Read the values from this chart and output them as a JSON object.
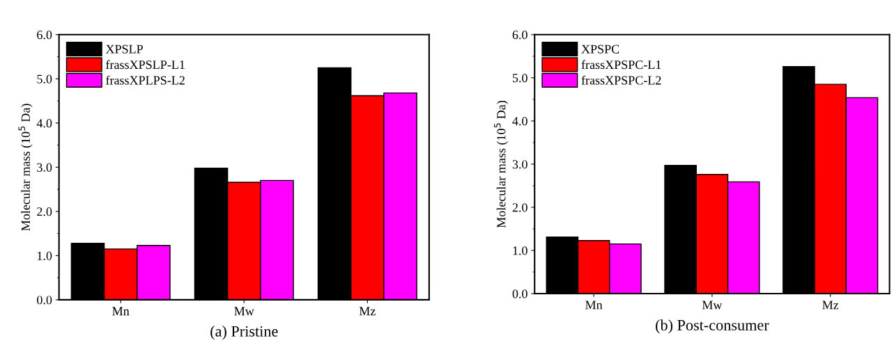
{
  "chart_data": [
    {
      "type": "bar",
      "xlabel": "(a) Pristine",
      "ylabel": "Molecular mass (10$^{5}$ Da)",
      "categories": [
        "Mn",
        "Mw",
        "Mz"
      ],
      "series": [
        {
          "name": "XPSLP",
          "color": "#000000",
          "values": [
            1.28,
            2.98,
            5.25
          ]
        },
        {
          "name": "frassXPSLP-L1",
          "color": "#ff0000",
          "values": [
            1.15,
            2.66,
            4.62
          ]
        },
        {
          "name": "frassXPLPS-L2",
          "color": "#ff00ff",
          "values": [
            1.23,
            2.7,
            4.68
          ]
        }
      ],
      "ylim": [
        0,
        6
      ],
      "yticks": [
        {
          "value": 0,
          "label": "0.0"
        },
        {
          "value": 1,
          "label": "1.0"
        },
        {
          "value": 2,
          "label": "2.0"
        },
        {
          "value": 3,
          "label": "3.0"
        },
        {
          "value": 4,
          "label": "4.0"
        },
        {
          "value": 5,
          "label": "5.0"
        },
        {
          "value": 6,
          "label": "6.0"
        }
      ],
      "legend": "top left",
      "grid": false
    },
    {
      "type": "bar",
      "xlabel": "(b) Post-consumer",
      "ylabel": "Molecular mass (10$^{5}$ Da)",
      "categories": [
        "Mn",
        "Mw",
        "Mz"
      ],
      "series": [
        {
          "name": "XPSPC",
          "color": "#000000",
          "values": [
            1.31,
            2.97,
            5.26
          ]
        },
        {
          "name": "frassXPSPC-L1",
          "color": "#ff0000",
          "values": [
            1.23,
            2.76,
            4.85
          ]
        },
        {
          "name": "frassXPSPC-L2",
          "color": "#ff00ff",
          "values": [
            1.15,
            2.59,
            4.54
          ]
        }
      ],
      "ylim": [
        0,
        6
      ],
      "yticks": [
        {
          "value": 0,
          "label": "0.0"
        },
        {
          "value": 1,
          "label": "1.0"
        },
        {
          "value": 2,
          "label": "2.0"
        },
        {
          "value": 3,
          "label": "3.0"
        },
        {
          "value": 4,
          "label": "4.0"
        },
        {
          "value": 5,
          "label": "5.0"
        },
        {
          "value": 6,
          "label": "6.0"
        }
      ],
      "legend": "top left",
      "grid": false
    }
  ]
}
